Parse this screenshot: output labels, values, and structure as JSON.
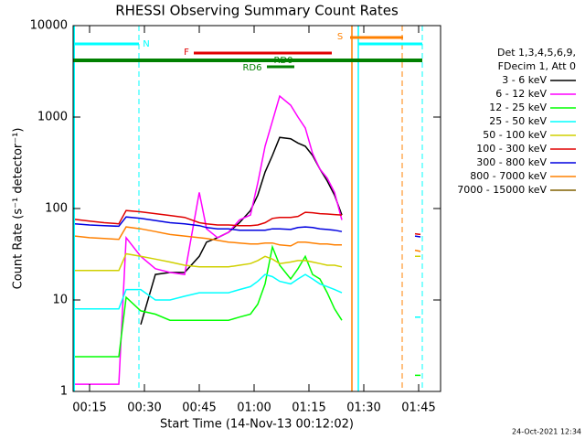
{
  "chart_data": {
    "type": "line",
    "title": "RHESSI Observing Summary Count Rates",
    "x_label": "Start Time (14-Nov-13 00:12:02)",
    "y_label": "Count Rate (s⁻¹ detector⁻¹)",
    "legend_header": [
      "Det 1,3,4,5,6,9,",
      "FDecim 1, Att 0"
    ],
    "footer": "24-Oct-2021 12:34",
    "log_y": true,
    "xlim": [
      10.5,
      111
    ],
    "ylim": [
      1,
      10000
    ],
    "xticks": [
      {
        "value": 15,
        "label": "00:15"
      },
      {
        "value": 30,
        "label": "00:30"
      },
      {
        "value": 45,
        "label": "00:45"
      },
      {
        "value": 60,
        "label": "01:00"
      },
      {
        "value": 75,
        "label": "01:15"
      },
      {
        "value": 90,
        "label": "01:30"
      },
      {
        "value": 105,
        "label": "01:45"
      }
    ],
    "yticks": [
      1,
      10,
      100,
      1000,
      10000
    ],
    "annotations": [
      {
        "text": "N",
        "color": "#00ffff"
      },
      {
        "text": "F",
        "color": "#e00000"
      },
      {
        "text": "S",
        "color": "#ff8000"
      },
      {
        "text": "RD0",
        "color": "#008000"
      },
      {
        "text": "RD6",
        "color": "#008000"
      }
    ],
    "x": [
      11,
      15,
      19,
      23,
      25,
      29,
      33,
      37,
      41,
      45,
      47,
      50,
      53,
      56,
      59,
      61,
      63,
      65,
      67,
      70,
      72,
      74,
      76,
      78,
      80,
      82,
      84,
      95,
      104,
      105.5
    ],
    "series": [
      {
        "name": "3 - 6 keV",
        "color": "#000000",
        "values": [
          null,
          null,
          null,
          null,
          null,
          5.4,
          19,
          20,
          20,
          30,
          43,
          48,
          55,
          70,
          95,
          140,
          250,
          380,
          600,
          580,
          520,
          480,
          380,
          270,
          200,
          140,
          85,
          null,
          null,
          null
        ]
      },
      {
        "name": "6 - 12 keV",
        "color": "#ff00ff",
        "values": [
          1.2,
          1.2,
          1.2,
          1.2,
          48,
          30,
          22,
          20,
          19,
          150,
          60,
          48,
          55,
          75,
          85,
          190,
          480,
          900,
          1700,
          1350,
          1000,
          760,
          400,
          270,
          215,
          150,
          75,
          null,
          null,
          null
        ]
      },
      {
        "name": "12 - 25 keV",
        "color": "#00ff00",
        "values": [
          2.4,
          2.4,
          2.4,
          2.4,
          10.7,
          7.6,
          7,
          6,
          6,
          6,
          6,
          6,
          6,
          6.5,
          7,
          9,
          15,
          38,
          24,
          17,
          22,
          30,
          19,
          17,
          12,
          8,
          6,
          null,
          1.5,
          1.5
        ]
      },
      {
        "name": "25 - 50 keV",
        "color": "#00ffff",
        "values": [
          8,
          8,
          8,
          8,
          13,
          13,
          10,
          10,
          11,
          12,
          12,
          12,
          12,
          13,
          14,
          16,
          19,
          18,
          16,
          15,
          17,
          19,
          17,
          15,
          14,
          13,
          12,
          null,
          6.5,
          6.5
        ]
      },
      {
        "name": "50 - 100 keV",
        "color": "#d0d000",
        "values": [
          21,
          21,
          21,
          21,
          32,
          30,
          28,
          26,
          24,
          23,
          23,
          23,
          23,
          24,
          25,
          27,
          30,
          28,
          25,
          26,
          27,
          27,
          26,
          25,
          24,
          24,
          23,
          null,
          30,
          30
        ]
      },
      {
        "name": "100 - 300 keV",
        "color": "#e00000",
        "values": [
          76,
          73,
          70,
          68,
          95,
          92,
          88,
          84,
          80,
          70,
          68,
          66,
          66,
          65,
          65,
          66,
          70,
          78,
          80,
          80,
          82,
          91,
          90,
          88,
          87,
          86,
          85,
          null,
          53,
          52
        ]
      },
      {
        "name": "300 - 800 keV",
        "color": "#0000e0",
        "values": [
          68,
          66,
          65,
          64,
          81,
          78,
          74,
          70,
          68,
          65,
          62,
          60,
          60,
          58,
          58,
          58,
          58,
          60,
          60,
          59,
          62,
          63,
          62,
          60,
          59,
          58,
          56,
          null,
          50,
          49
        ]
      },
      {
        "name": "800 - 7000 keV",
        "color": "#ff8000",
        "values": [
          50,
          48,
          47,
          46,
          63,
          60,
          56,
          52,
          50,
          48,
          47,
          45,
          43,
          42,
          41,
          41,
          42,
          42,
          40,
          39,
          43,
          43,
          42,
          41,
          41,
          40,
          40,
          null,
          35,
          34
        ]
      },
      {
        "name": "7000 - 15000 keV",
        "color": "#806000",
        "values": [
          null,
          null,
          null,
          null,
          null,
          null,
          null,
          null,
          null,
          null,
          null,
          null,
          null,
          null,
          null,
          null,
          null,
          null,
          null,
          null,
          null,
          null,
          null,
          null,
          null,
          null,
          null,
          null,
          null,
          null
        ]
      }
    ]
  }
}
